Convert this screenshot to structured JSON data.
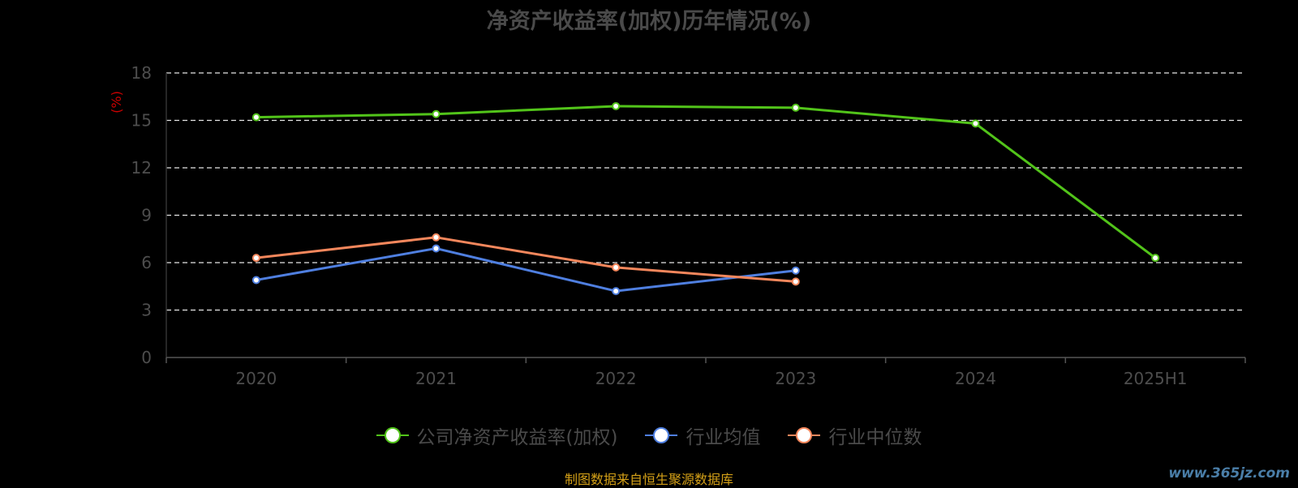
{
  "chart_data": {
    "type": "line",
    "title": "净资产收益率(加权)历年情况(%)",
    "ylabel": "(%)",
    "xlabel": "",
    "categories": [
      "2020",
      "2021",
      "2022",
      "2023",
      "2024",
      "2025H1"
    ],
    "yticks": [
      "0",
      "3",
      "6",
      "9",
      "12",
      "15",
      "18"
    ],
    "ylim": [
      0,
      18
    ],
    "grid": "horizontal dashed",
    "legend_position": "bottom",
    "series": [
      {
        "name": "公司净资产收益率(加权)",
        "color": "#52c41a",
        "values": [
          15.2,
          15.4,
          15.9,
          15.8,
          14.8,
          6.3
        ]
      },
      {
        "name": "行业均值",
        "color": "#4f7fe0",
        "values": [
          4.9,
          6.9,
          4.2,
          5.5,
          null,
          null
        ]
      },
      {
        "name": "行业中位数",
        "color": "#f5875c",
        "values": [
          6.3,
          7.6,
          5.7,
          4.8,
          null,
          null
        ]
      }
    ]
  },
  "source_note": "制图数据来自恒生聚源数据库",
  "watermark": "www.365jz.com"
}
